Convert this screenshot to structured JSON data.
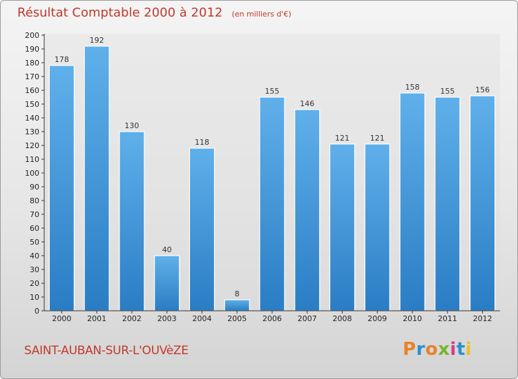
{
  "chart_data": {
    "type": "bar",
    "title": "Résultat Comptable 2000 à 2012",
    "subtitle": "(en milliers d'€)",
    "categories": [
      "2000",
      "2001",
      "2002",
      "2003",
      "2004",
      "2005",
      "2006",
      "2007",
      "2008",
      "2009",
      "2010",
      "2011",
      "2012"
    ],
    "values": [
      178,
      192,
      130,
      40,
      118,
      8,
      155,
      146,
      121,
      121,
      158,
      155,
      156
    ],
    "xlabel": "",
    "ylabel": "",
    "ylim": [
      0,
      200
    ],
    "ytick_step": 10,
    "grid": false,
    "bar_color": "#3a8fd6"
  },
  "commune": "SAINT-AUBAN-SUR-L'OUVèZE",
  "logo": {
    "letters": [
      "P",
      "r",
      "o",
      "x",
      "i",
      "t",
      "i"
    ],
    "colors": [
      "#e8822a",
      "#2a8fd0",
      "#e8822a",
      "#7ab32e",
      "#d63b8c",
      "#2a8fd0",
      "#e8c22a"
    ]
  }
}
